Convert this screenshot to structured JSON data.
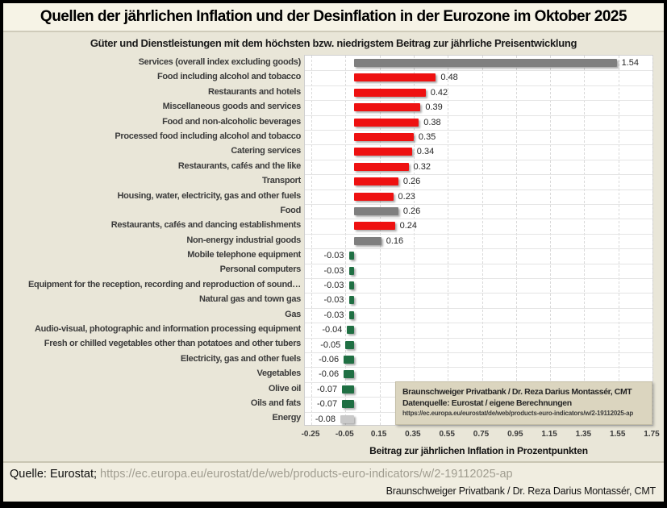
{
  "window": {
    "title": "Quellen der jährlichen Inflation und der Desinflation in der Eurozone im Oktober 2025"
  },
  "chart_data": {
    "type": "bar",
    "orientation": "horizontal",
    "title": "Güter und Dienstleistungen mit dem höchsten bzw. niedrigstem Beitrag zur jährliche Preisentwicklung",
    "xlabel": "Beitrag zur jährlichen Inflation in Prozentpunkten",
    "xlim": [
      -0.25,
      1.75
    ],
    "xticks": [
      "-0.25",
      "-0.05",
      "0.15",
      "0.35",
      "0.55",
      "0.75",
      "0.95",
      "1.15",
      "1.35",
      "1.55",
      "1.75"
    ],
    "grid": "vertical-dashed",
    "legend_position": "none",
    "palette": {
      "red": "#ee1111",
      "gray": "#7f7f7f",
      "green": "#1f6f43",
      "lightgray": "#c9c9c9"
    },
    "items": [
      {
        "label": "Services (overall index excluding goods)",
        "value": 1.54,
        "display": "1.54",
        "color": "gray"
      },
      {
        "label": "Food including alcohol and tobacco",
        "value": 0.48,
        "display": "0.48",
        "color": "red"
      },
      {
        "label": "Restaurants and hotels",
        "value": 0.42,
        "display": "0.42",
        "color": "red"
      },
      {
        "label": "Miscellaneous goods and services",
        "value": 0.39,
        "display": "0.39",
        "color": "red"
      },
      {
        "label": "Food and non-alcoholic beverages",
        "value": 0.38,
        "display": "0.38",
        "color": "red"
      },
      {
        "label": "Processed food including alcohol and tobacco",
        "value": 0.35,
        "display": "0.35",
        "color": "red"
      },
      {
        "label": "Catering services",
        "value": 0.34,
        "display": "0.34",
        "color": "red"
      },
      {
        "label": "Restaurants, cafés and the like",
        "value": 0.32,
        "display": "0.32",
        "color": "red"
      },
      {
        "label": "Transport",
        "value": 0.26,
        "display": "0.26",
        "color": "red"
      },
      {
        "label": "Housing, water, electricity, gas and other fuels",
        "value": 0.23,
        "display": "0.23",
        "color": "red"
      },
      {
        "label": "Food",
        "value": 0.26,
        "display": "0.26",
        "color": "gray"
      },
      {
        "label": "Restaurants, cafés and dancing establishments",
        "value": 0.24,
        "display": "0.24",
        "color": "red"
      },
      {
        "label": "Non-energy industrial goods",
        "value": 0.16,
        "display": "0.16",
        "color": "gray"
      },
      {
        "label": "Mobile telephone equipment",
        "value": -0.03,
        "display": "-0.03",
        "color": "green"
      },
      {
        "label": "Personal computers",
        "value": -0.03,
        "display": "-0.03",
        "color": "green"
      },
      {
        "label": "Equipment for the reception, recording and reproduction of sound…",
        "value": -0.03,
        "display": "-0.03",
        "color": "green"
      },
      {
        "label": "Natural gas and town gas",
        "value": -0.03,
        "display": "-0.03",
        "color": "green"
      },
      {
        "label": "Gas",
        "value": -0.03,
        "display": "-0.03",
        "color": "green"
      },
      {
        "label": "Audio-visual, photographic and information processing equipment",
        "value": -0.04,
        "display": "-0.04",
        "color": "green"
      },
      {
        "label": "Fresh or chilled vegetables other than potatoes and other tubers",
        "value": -0.05,
        "display": "-0.05",
        "color": "green"
      },
      {
        "label": "Electricity, gas and other fuels",
        "value": -0.06,
        "display": "-0.06",
        "color": "green"
      },
      {
        "label": "Vegetables",
        "value": -0.06,
        "display": "-0.06",
        "color": "green"
      },
      {
        "label": "Olive oil",
        "value": -0.07,
        "display": "-0.07",
        "color": "green"
      },
      {
        "label": "Oils and fats",
        "value": -0.07,
        "display": "-0.07",
        "color": "green"
      },
      {
        "label": "Energy",
        "value": -0.08,
        "display": "-0.08",
        "color": "lightgray"
      }
    ]
  },
  "annotation_box": {
    "line1": "Braunschweiger Privatbank / Dr. Reza Darius Montassér, CMT",
    "line2": "Datenquelle: Eurostat / eigene Berechnungen",
    "line3": "https://ec.europa.eu/eurostat/de/web/products-euro-indicators/w/2-19112025-ap"
  },
  "footer": {
    "source_label": "Quelle: Eurostat;",
    "source_url": "https://ec.europa.eu/eurostat/de/web/products-euro-indicators/w/2-19112025-ap",
    "credit": "Braunschweiger Privatbank / Dr. Reza Darius Montassér, CMT"
  }
}
